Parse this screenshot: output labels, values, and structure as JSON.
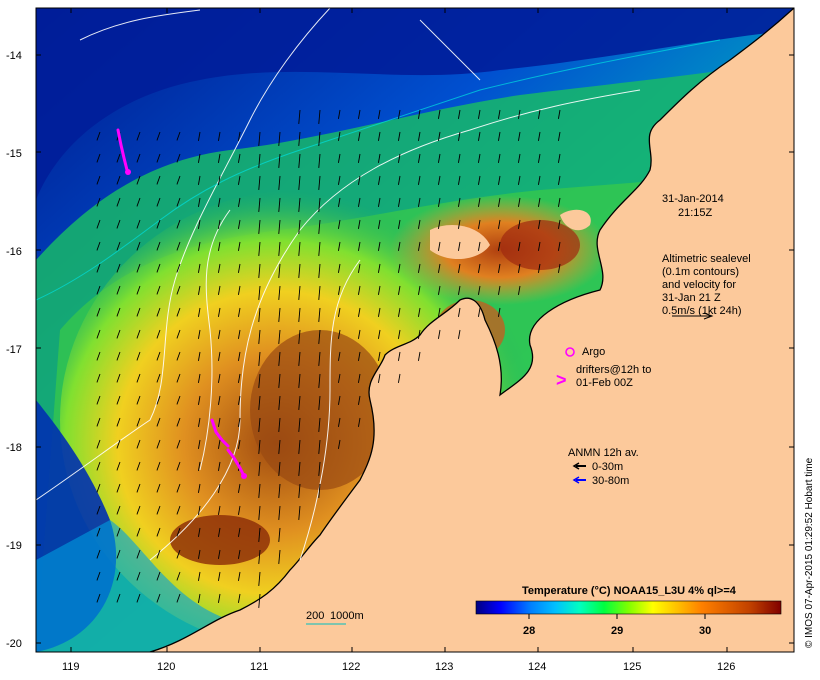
{
  "map": {
    "lon_ticks": [
      "119",
      "120",
      "121",
      "122",
      "123",
      "124",
      "125",
      "126"
    ],
    "lat_ticks": [
      "-14",
      "-15",
      "-16",
      "-17",
      "-18",
      "-19",
      "-20"
    ],
    "timestamp": [
      "31-Jan-2014",
      "21:15Z"
    ],
    "altimetry_note": [
      "Altimetric sealevel",
      "(0.1m contours)",
      "and velocity for",
      "31-Jan 21 Z",
      "0.5m/s (1kt 24h)"
    ],
    "argo_label": "Argo",
    "drifters_label": [
      "drifters@12h to",
      "01-Feb 00Z"
    ],
    "anmn": {
      "title": "ANMN 12h av.",
      "items": [
        {
          "label": "0-30m",
          "color": "#000000"
        },
        {
          "label": "30-80m",
          "color": "#0000ff"
        }
      ]
    },
    "isobath_labels": [
      "200",
      "1000m"
    ],
    "colorbar": {
      "title": "Temperature (°C) NOAA15_L3U 4% ql>=4",
      "ticks": [
        "28",
        "29",
        "30"
      ],
      "colors": [
        "#000080",
        "#0000ff",
        "#0080ff",
        "#00c0ff",
        "#00ffc0",
        "#00ff40",
        "#80ff00",
        "#ffff00",
        "#ffc000",
        "#ff8000",
        "#e06000",
        "#c04000",
        "#a00000",
        "#800000"
      ]
    },
    "credit": "© IMOS 07-Apr-2015 01:29:52 Hobart time",
    "colors": {
      "land": "#fcc99b",
      "marker_magenta": "#ff00ff",
      "contour": "#ffffff"
    }
  }
}
